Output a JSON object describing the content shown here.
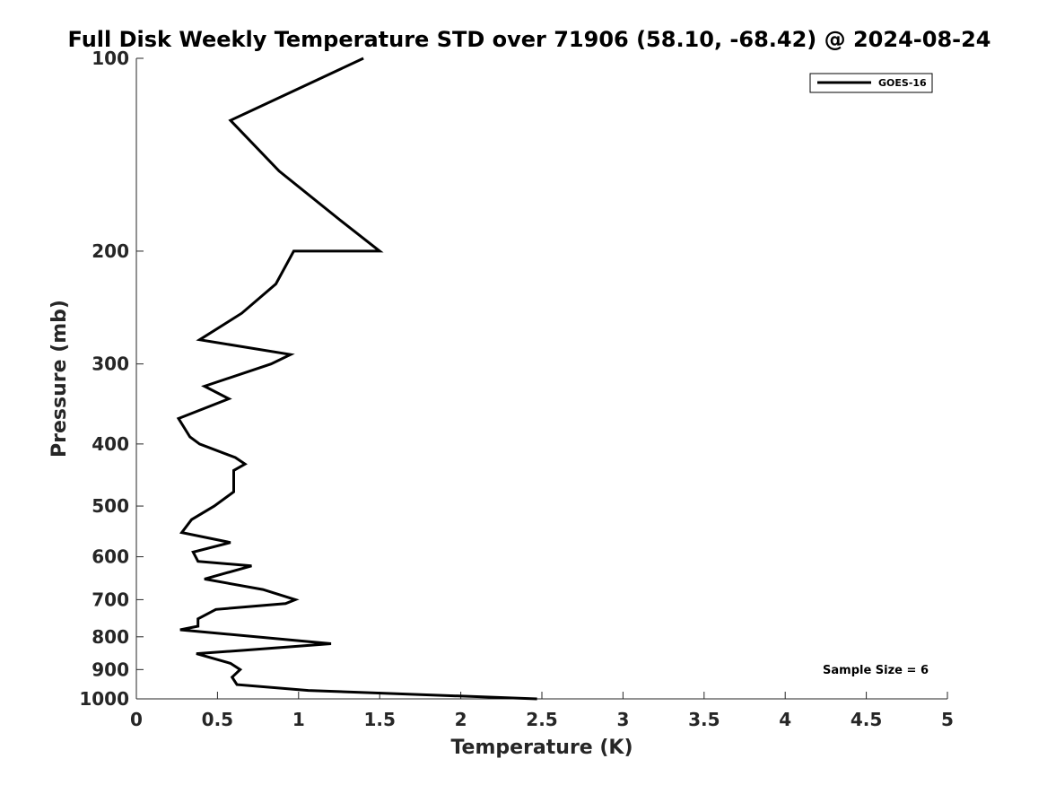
{
  "chart_data": {
    "type": "line",
    "title": "Full Disk Weekly Temperature STD over 71906 (58.10, -68.42) @ 2024-08-24",
    "xlabel": "Temperature (K)",
    "ylabel": "Pressure (mb)",
    "xlim": [
      0,
      5
    ],
    "ylim": [
      100,
      1000
    ],
    "y_scale": "log",
    "y_reversed": true,
    "xticks": [
      "0",
      "0.5",
      "1",
      "1.5",
      "2",
      "2.5",
      "3",
      "3.5",
      "4",
      "4.5",
      "5"
    ],
    "yticks": [
      "100",
      "200",
      "300",
      "400",
      "500",
      "600",
      "700",
      "800",
      "900",
      "1000"
    ],
    "grid": false,
    "legend_position": "top-right",
    "series": [
      {
        "name": "GOES-16",
        "color": "#000000",
        "points": [
          [
            1.4,
            100
          ],
          [
            0.58,
            125
          ],
          [
            0.88,
            150
          ],
          [
            1.27,
            180
          ],
          [
            1.5,
            200
          ],
          [
            0.97,
            200
          ],
          [
            0.86,
            225
          ],
          [
            0.65,
            250
          ],
          [
            0.39,
            275
          ],
          [
            0.95,
            290
          ],
          [
            0.83,
            300
          ],
          [
            0.42,
            325
          ],
          [
            0.57,
            340
          ],
          [
            0.26,
            365
          ],
          [
            0.33,
            390
          ],
          [
            0.39,
            400
          ],
          [
            0.61,
            420
          ],
          [
            0.67,
            430
          ],
          [
            0.6,
            440
          ],
          [
            0.6,
            475
          ],
          [
            0.48,
            500
          ],
          [
            0.34,
            525
          ],
          [
            0.28,
            550
          ],
          [
            0.58,
            570
          ],
          [
            0.35,
            590
          ],
          [
            0.38,
            610
          ],
          [
            0.71,
            620
          ],
          [
            0.42,
            650
          ],
          [
            0.78,
            675
          ],
          [
            0.98,
            700
          ],
          [
            0.92,
            710
          ],
          [
            0.49,
            725
          ],
          [
            0.38,
            750
          ],
          [
            0.38,
            770
          ],
          [
            0.27,
            780
          ],
          [
            1.2,
            820
          ],
          [
            0.66,
            840
          ],
          [
            0.37,
            850
          ],
          [
            0.58,
            880
          ],
          [
            0.64,
            900
          ],
          [
            0.59,
            925
          ],
          [
            0.62,
            950
          ],
          [
            1.06,
            970
          ],
          [
            2.47,
            1000
          ]
        ]
      }
    ],
    "annotation": "Sample Size = 6"
  }
}
